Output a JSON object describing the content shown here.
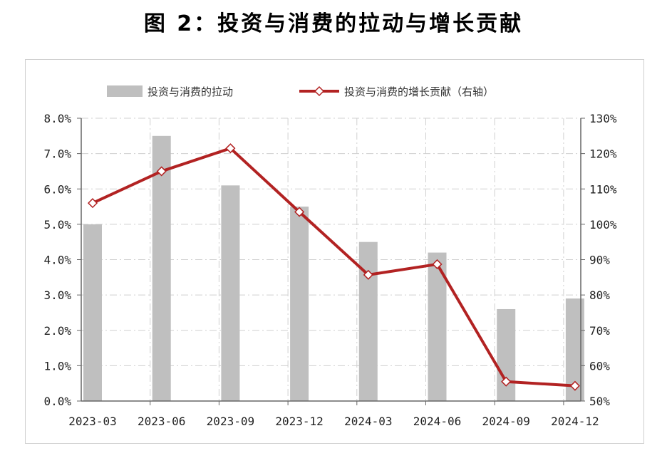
{
  "chart_data": {
    "type": "bar+line",
    "title": "图 2：投资与消费的拉动与增长贡献",
    "categories": [
      "2023-03",
      "2023-06",
      "2023-09",
      "2023-12",
      "2024-03",
      "2024-06",
      "2024-09",
      "2024-12"
    ],
    "series": [
      {
        "name": "投资与消费的拉动",
        "type": "bar",
        "axis": "left",
        "color": "#bfbfbf",
        "values": [
          5.0,
          7.5,
          6.1,
          5.5,
          4.5,
          4.2,
          2.6,
          2.9
        ]
      },
      {
        "name": "投资与消费的增长贡献（右轴）",
        "type": "line",
        "axis": "right",
        "color": "#b22222",
        "values": [
          106,
          115,
          121.5,
          103.5,
          85.7,
          88.7,
          55.5,
          54.3
        ]
      }
    ],
    "left_axis": {
      "min": 0,
      "max": 8,
      "step": 1,
      "ticks": [
        "0.0%",
        "1.0%",
        "2.0%",
        "3.0%",
        "4.0%",
        "5.0%",
        "6.0%",
        "7.0%",
        "8.0%"
      ]
    },
    "right_axis": {
      "min": 50,
      "max": 130,
      "step": 10,
      "ticks": [
        "50%",
        "60%",
        "70%",
        "80%",
        "90%",
        "100%",
        "110%",
        "120%",
        "130%"
      ]
    },
    "grid": true,
    "legend_position": "top"
  }
}
